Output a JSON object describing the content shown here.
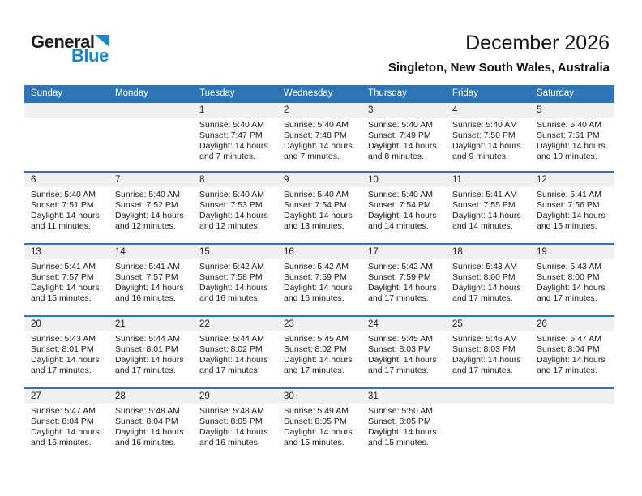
{
  "logo": {
    "line1": "General",
    "line2": "Blue",
    "triangle_icon": "flag-triangle"
  },
  "header": {
    "title": "December 2026",
    "subtitle": "Singleton, New South Wales, Australia"
  },
  "colors": {
    "header_bg": "#2E75B5",
    "band_bg": "#F0F0F0",
    "logo_blue": "#1786C8",
    "separator": "#2E75B5",
    "text": "#1A1A1A"
  },
  "calendar": {
    "day_names": [
      "Sunday",
      "Monday",
      "Tuesday",
      "Wednesday",
      "Thursday",
      "Friday",
      "Saturday"
    ],
    "weeks": [
      {
        "days": [
          null,
          null,
          {
            "num": "1",
            "sunrise": "Sunrise: 5:40 AM",
            "sunset": "Sunset: 7:47 PM",
            "daylight1": "Daylight: 14 hours",
            "daylight2": "and 7 minutes."
          },
          {
            "num": "2",
            "sunrise": "Sunrise: 5:40 AM",
            "sunset": "Sunset: 7:48 PM",
            "daylight1": "Daylight: 14 hours",
            "daylight2": "and 7 minutes."
          },
          {
            "num": "3",
            "sunrise": "Sunrise: 5:40 AM",
            "sunset": "Sunset: 7:49 PM",
            "daylight1": "Daylight: 14 hours",
            "daylight2": "and 8 minutes."
          },
          {
            "num": "4",
            "sunrise": "Sunrise: 5:40 AM",
            "sunset": "Sunset: 7:50 PM",
            "daylight1": "Daylight: 14 hours",
            "daylight2": "and 9 minutes."
          },
          {
            "num": "5",
            "sunrise": "Sunrise: 5:40 AM",
            "sunset": "Sunset: 7:51 PM",
            "daylight1": "Daylight: 14 hours",
            "daylight2": "and 10 minutes."
          }
        ]
      },
      {
        "days": [
          {
            "num": "6",
            "sunrise": "Sunrise: 5:40 AM",
            "sunset": "Sunset: 7:51 PM",
            "daylight1": "Daylight: 14 hours",
            "daylight2": "and 11 minutes."
          },
          {
            "num": "7",
            "sunrise": "Sunrise: 5:40 AM",
            "sunset": "Sunset: 7:52 PM",
            "daylight1": "Daylight: 14 hours",
            "daylight2": "and 12 minutes."
          },
          {
            "num": "8",
            "sunrise": "Sunrise: 5:40 AM",
            "sunset": "Sunset: 7:53 PM",
            "daylight1": "Daylight: 14 hours",
            "daylight2": "and 12 minutes."
          },
          {
            "num": "9",
            "sunrise": "Sunrise: 5:40 AM",
            "sunset": "Sunset: 7:54 PM",
            "daylight1": "Daylight: 14 hours",
            "daylight2": "and 13 minutes."
          },
          {
            "num": "10",
            "sunrise": "Sunrise: 5:40 AM",
            "sunset": "Sunset: 7:54 PM",
            "daylight1": "Daylight: 14 hours",
            "daylight2": "and 14 minutes."
          },
          {
            "num": "11",
            "sunrise": "Sunrise: 5:41 AM",
            "sunset": "Sunset: 7:55 PM",
            "daylight1": "Daylight: 14 hours",
            "daylight2": "and 14 minutes."
          },
          {
            "num": "12",
            "sunrise": "Sunrise: 5:41 AM",
            "sunset": "Sunset: 7:56 PM",
            "daylight1": "Daylight: 14 hours",
            "daylight2": "and 15 minutes."
          }
        ]
      },
      {
        "days": [
          {
            "num": "13",
            "sunrise": "Sunrise: 5:41 AM",
            "sunset": "Sunset: 7:57 PM",
            "daylight1": "Daylight: 14 hours",
            "daylight2": "and 15 minutes."
          },
          {
            "num": "14",
            "sunrise": "Sunrise: 5:41 AM",
            "sunset": "Sunset: 7:57 PM",
            "daylight1": "Daylight: 14 hours",
            "daylight2": "and 16 minutes."
          },
          {
            "num": "15",
            "sunrise": "Sunrise: 5:42 AM",
            "sunset": "Sunset: 7:58 PM",
            "daylight1": "Daylight: 14 hours",
            "daylight2": "and 16 minutes."
          },
          {
            "num": "16",
            "sunrise": "Sunrise: 5:42 AM",
            "sunset": "Sunset: 7:59 PM",
            "daylight1": "Daylight: 14 hours",
            "daylight2": "and 16 minutes."
          },
          {
            "num": "17",
            "sunrise": "Sunrise: 5:42 AM",
            "sunset": "Sunset: 7:59 PM",
            "daylight1": "Daylight: 14 hours",
            "daylight2": "and 17 minutes."
          },
          {
            "num": "18",
            "sunrise": "Sunrise: 5:43 AM",
            "sunset": "Sunset: 8:00 PM",
            "daylight1": "Daylight: 14 hours",
            "daylight2": "and 17 minutes."
          },
          {
            "num": "19",
            "sunrise": "Sunrise: 5:43 AM",
            "sunset": "Sunset: 8:00 PM",
            "daylight1": "Daylight: 14 hours",
            "daylight2": "and 17 minutes."
          }
        ]
      },
      {
        "days": [
          {
            "num": "20",
            "sunrise": "Sunrise: 5:43 AM",
            "sunset": "Sunset: 8:01 PM",
            "daylight1": "Daylight: 14 hours",
            "daylight2": "and 17 minutes."
          },
          {
            "num": "21",
            "sunrise": "Sunrise: 5:44 AM",
            "sunset": "Sunset: 8:01 PM",
            "daylight1": "Daylight: 14 hours",
            "daylight2": "and 17 minutes."
          },
          {
            "num": "22",
            "sunrise": "Sunrise: 5:44 AM",
            "sunset": "Sunset: 8:02 PM",
            "daylight1": "Daylight: 14 hours",
            "daylight2": "and 17 minutes."
          },
          {
            "num": "23",
            "sunrise": "Sunrise: 5:45 AM",
            "sunset": "Sunset: 8:02 PM",
            "daylight1": "Daylight: 14 hours",
            "daylight2": "and 17 minutes."
          },
          {
            "num": "24",
            "sunrise": "Sunrise: 5:45 AM",
            "sunset": "Sunset: 8:03 PM",
            "daylight1": "Daylight: 14 hours",
            "daylight2": "and 17 minutes."
          },
          {
            "num": "25",
            "sunrise": "Sunrise: 5:46 AM",
            "sunset": "Sunset: 8:03 PM",
            "daylight1": "Daylight: 14 hours",
            "daylight2": "and 17 minutes."
          },
          {
            "num": "26",
            "sunrise": "Sunrise: 5:47 AM",
            "sunset": "Sunset: 8:04 PM",
            "daylight1": "Daylight: 14 hours",
            "daylight2": "and 17 minutes."
          }
        ]
      },
      {
        "days": [
          {
            "num": "27",
            "sunrise": "Sunrise: 5:47 AM",
            "sunset": "Sunset: 8:04 PM",
            "daylight1": "Daylight: 14 hours",
            "daylight2": "and 16 minutes."
          },
          {
            "num": "28",
            "sunrise": "Sunrise: 5:48 AM",
            "sunset": "Sunset: 8:04 PM",
            "daylight1": "Daylight: 14 hours",
            "daylight2": "and 16 minutes."
          },
          {
            "num": "29",
            "sunrise": "Sunrise: 5:48 AM",
            "sunset": "Sunset: 8:05 PM",
            "daylight1": "Daylight: 14 hours",
            "daylight2": "and 16 minutes."
          },
          {
            "num": "30",
            "sunrise": "Sunrise: 5:49 AM",
            "sunset": "Sunset: 8:05 PM",
            "daylight1": "Daylight: 14 hours",
            "daylight2": "and 15 minutes."
          },
          {
            "num": "31",
            "sunrise": "Sunrise: 5:50 AM",
            "sunset": "Sunset: 8:05 PM",
            "daylight1": "Daylight: 14 hours",
            "daylight2": "and 15 minutes."
          },
          null,
          null
        ]
      }
    ]
  }
}
